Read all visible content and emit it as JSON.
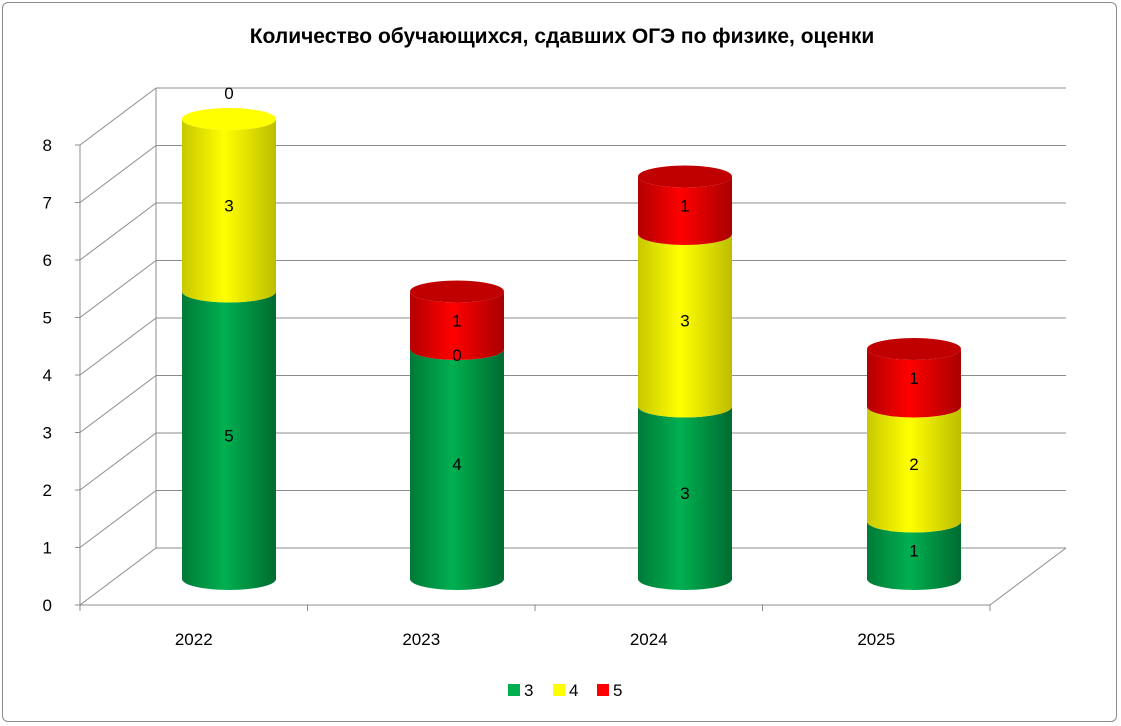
{
  "chart_data": {
    "type": "bar",
    "stacked": true,
    "three_d": true,
    "title": "Количество обучающихся, сдавших ОГЭ по физике, оценки",
    "categories": [
      "2022",
      "2023",
      "2024",
      "2025"
    ],
    "series": [
      {
        "name": "3",
        "values": [
          5,
          4,
          3,
          1
        ],
        "color": "#00b050"
      },
      {
        "name": "4",
        "values": [
          3,
          0,
          3,
          2
        ],
        "color": "#ffff00"
      },
      {
        "name": "5",
        "values": [
          0,
          1,
          1,
          1
        ],
        "color": "#ff0000"
      }
    ],
    "ylim": [
      0,
      8
    ],
    "yticks": [
      "0",
      "1",
      "2",
      "3",
      "4",
      "5",
      "6",
      "7",
      "8"
    ],
    "grid": true,
    "legend": "bottom"
  }
}
